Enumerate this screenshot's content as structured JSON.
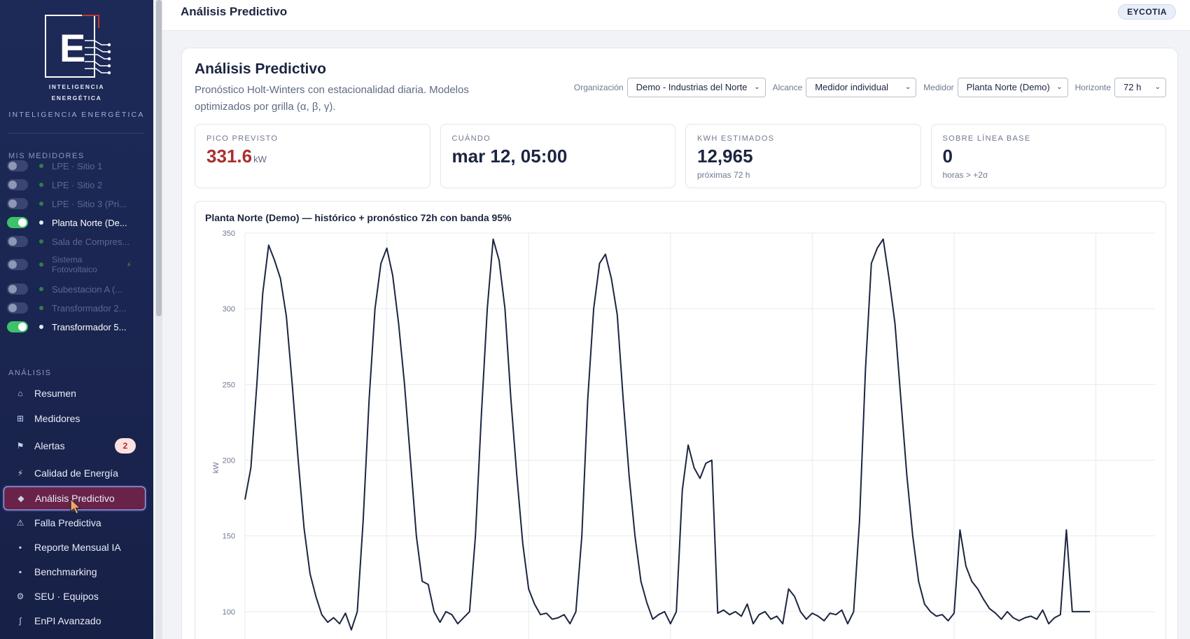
{
  "sidebar": {
    "brand_sub_1": "INTELIGENCIA",
    "brand_sub_2": "ENERGÉTICA",
    "brand_tagline": "INTELIGENCIA ENERGÉTICA",
    "meters_title": "MIS MEDIDORES",
    "meters": [
      {
        "label": "LPE · Sitio 1",
        "on": false
      },
      {
        "label": "LPE · Sitio 2",
        "on": false
      },
      {
        "label": "LPE · Sitio 3 (Pri...",
        "on": false
      },
      {
        "label": "Planta Norte (De...",
        "on": true
      },
      {
        "label": "Sala de Compres...",
        "on": false
      },
      {
        "label": "Sistema Fotovoltaico",
        "on": false
      },
      {
        "label": "Subestacion A (...",
        "on": false
      },
      {
        "label": "Transformador 2...",
        "on": false
      },
      {
        "label": "Transformador 5...",
        "on": true
      }
    ],
    "analysis_title": "ANÁLISIS",
    "nav": [
      {
        "label": "Resumen",
        "icon": "home-icon",
        "glyph": "⌂"
      },
      {
        "label": "Medidores",
        "icon": "grid-icon",
        "glyph": "⊞"
      },
      {
        "label": "Alertas",
        "icon": "flag-icon",
        "glyph": "⚑",
        "badge": "2"
      },
      {
        "label": "Calidad de Energía",
        "icon": "bolt-icon",
        "glyph": "⚡"
      },
      {
        "label": "Análisis Predictivo",
        "icon": "diamond-icon",
        "glyph": "◆",
        "active": true
      },
      {
        "label": "Falla Predictiva",
        "icon": "warning-icon",
        "glyph": "⚠"
      },
      {
        "label": "Reporte Mensual IA",
        "icon": "report-icon",
        "glyph": "▪"
      },
      {
        "label": "Benchmarking",
        "icon": "benchmark-icon",
        "glyph": "▪"
      },
      {
        "label": "SEU · Equipos",
        "icon": "gear-icon",
        "glyph": "⚙"
      },
      {
        "label": "EnPI Avanzado",
        "icon": "integral-icon",
        "glyph": "∫"
      }
    ]
  },
  "topbar": {
    "title": "Análisis Predictivo",
    "org_badge": "EYCOTIA"
  },
  "main": {
    "title": "Análisis Predictivo",
    "description": "Pronóstico Holt-Winters con estacionalidad diaria. Modelos optimizados por grilla (α, β, γ).",
    "filters": {
      "org_label": "Organización",
      "org_value": "Demo - Industrias del Norte",
      "scope_label": "Alcance",
      "scope_value": "Medidor individual",
      "meter_label": "Medidor",
      "meter_value": "Planta Norte (Demo)",
      "horizon_label": "Horizonte",
      "horizon_value": "72 h"
    },
    "kpis": {
      "peak_label": "PICO PREVISTO",
      "peak_value": "331.6",
      "peak_unit": "kW",
      "when_label": "CUÁNDO",
      "when_value": "mar 12, 05:00",
      "kwh_label": "KWH ESTIMADOS",
      "kwh_value": "12,965",
      "kwh_sub": "próximas 72 h",
      "base_label": "SOBRE LÍNEA BASE",
      "base_value": "0",
      "base_sub": "horas > +2σ"
    },
    "chart_title": "Planta Norte (Demo) — histórico + pronóstico 72h con banda 95%"
  },
  "colors": {
    "history": "#1c2541",
    "forecast": "#c0392b",
    "accent_peak": "#a9302e"
  },
  "chart_data": {
    "type": "line",
    "title": "Planta Norte (Demo) — histórico + pronóstico 72h con banda 95%",
    "ylabel": "kW",
    "ylim": [
      75,
      350
    ],
    "yticks": [
      100,
      150,
      200,
      250,
      300,
      350
    ],
    "xlim": [
      0,
      154
    ],
    "grid": true,
    "series": [
      {
        "kind": "history",
        "x": [
          0,
          1,
          2,
          3,
          4,
          5,
          6,
          7,
          8,
          9,
          10,
          11,
          12,
          13,
          14,
          15,
          16,
          17,
          18,
          19,
          20,
          21,
          22,
          23,
          24,
          25,
          26,
          27,
          28,
          29,
          30,
          31,
          32,
          33,
          34,
          35,
          36,
          37,
          38,
          39,
          40,
          41,
          42,
          43,
          44,
          45,
          46,
          47,
          48,
          49,
          50,
          51,
          52,
          53,
          54,
          55,
          56,
          57,
          58,
          59,
          60,
          61,
          62,
          63,
          64,
          65,
          66,
          67,
          68,
          69,
          70,
          71,
          72,
          73,
          74,
          75,
          76,
          77,
          78,
          79,
          80,
          81,
          82,
          83,
          84,
          85,
          86,
          87,
          88,
          89,
          90,
          91,
          92,
          93,
          94,
          95,
          96,
          97,
          98,
          99,
          100,
          101,
          102,
          103,
          104,
          105,
          106,
          107,
          108,
          109,
          110,
          111,
          112,
          113,
          114,
          115,
          116,
          117,
          118,
          119,
          120,
          121,
          122,
          123,
          124,
          125,
          126,
          127,
          128,
          129,
          130,
          131,
          132,
          133,
          134,
          135,
          136,
          137,
          138,
          139,
          140,
          141,
          142,
          143
        ],
        "values": [
          174,
          195,
          250,
          310,
          342,
          332,
          320,
          295,
          250,
          200,
          155,
          125,
          110,
          98,
          93,
          96,
          92,
          99,
          88,
          100,
          160,
          240,
          300,
          330,
          340,
          322,
          290,
          250,
          200,
          150,
          120,
          118,
          100,
          93,
          100,
          98,
          92,
          96,
          100,
          150,
          230,
          300,
          346,
          332,
          300,
          240,
          190,
          145,
          115,
          105,
          98,
          99,
          95,
          96,
          98,
          92,
          100,
          150,
          240,
          300,
          330,
          336,
          320,
          296,
          240,
          190,
          150,
          120,
          106,
          95,
          98,
          100,
          92,
          100,
          180,
          210,
          195,
          188,
          198,
          200,
          99,
          101,
          98,
          100,
          97,
          105,
          92,
          98,
          100,
          95,
          97,
          92,
          115,
          110,
          100,
          95,
          99,
          97,
          94,
          99,
          98,
          101,
          92,
          100,
          160,
          260,
          330,
          340,
          346,
          320,
          290,
          240,
          190,
          150,
          120,
          105,
          100,
          97,
          98,
          94,
          99,
          154,
          130,
          120,
          115,
          108,
          102,
          99,
          95,
          100,
          96,
          94,
          96,
          97,
          95,
          101,
          92,
          96,
          98,
          154,
          100,
          100,
          100,
          100
        ],
        "values_note": ""
      }
    ]
  }
}
